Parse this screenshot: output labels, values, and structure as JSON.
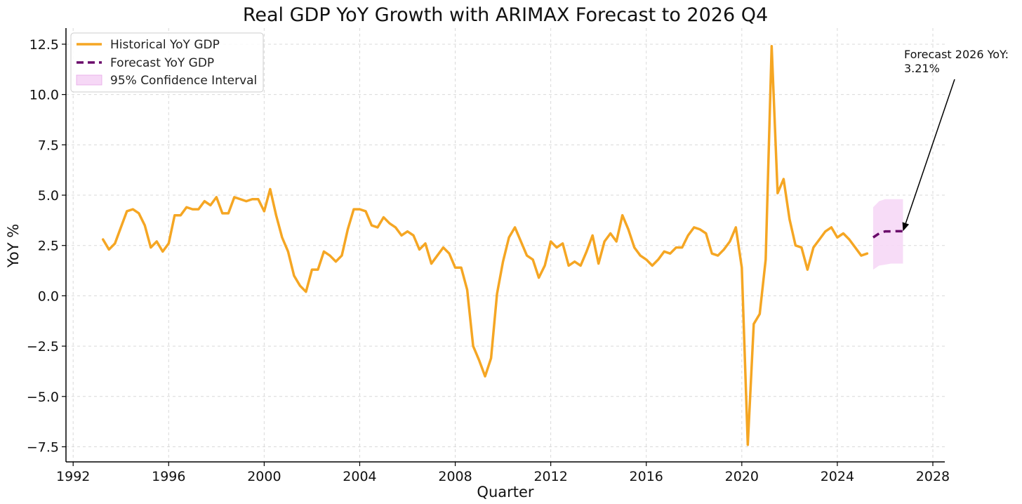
{
  "chart_data": {
    "type": "line",
    "title": "Real GDP YoY Growth with ARIMAX Forecast to 2026 Q4",
    "xlabel": "Quarter",
    "ylabel": "YoY %",
    "xlim": [
      1991.7,
      2028.5
    ],
    "ylim": [
      -8.25,
      13.3
    ],
    "x_ticks": [
      1992,
      1996,
      2000,
      2004,
      2008,
      2012,
      2016,
      2020,
      2024,
      2028
    ],
    "y_ticks": [
      -7.5,
      -5.0,
      -2.5,
      0.0,
      2.5,
      5.0,
      7.5,
      10.0,
      12.5
    ],
    "y_tick_labels": [
      "−7.5",
      "−5.0",
      "−2.5",
      "0.0",
      "2.5",
      "5.0",
      "7.5",
      "10.0",
      "12.5"
    ],
    "grid": true,
    "legend_position": "top-left",
    "series": [
      {
        "name": "Historical YoY GDP",
        "color": "#f5a623",
        "style": "solid",
        "x": [
          1993.25,
          1993.5,
          1993.75,
          1994.0,
          1994.25,
          1994.5,
          1994.75,
          1995.0,
          1995.25,
          1995.5,
          1995.75,
          1996.0,
          1996.25,
          1996.5,
          1996.75,
          1997.0,
          1997.25,
          1997.5,
          1997.75,
          1998.0,
          1998.25,
          1998.5,
          1998.75,
          1999.0,
          1999.25,
          1999.5,
          1999.75,
          2000.0,
          2000.25,
          2000.5,
          2000.75,
          2001.0,
          2001.25,
          2001.5,
          2001.75,
          2002.0,
          2002.25,
          2002.5,
          2002.75,
          2003.0,
          2003.25,
          2003.5,
          2003.75,
          2004.0,
          2004.25,
          2004.5,
          2004.75,
          2005.0,
          2005.25,
          2005.5,
          2005.75,
          2006.0,
          2006.25,
          2006.5,
          2006.75,
          2007.0,
          2007.25,
          2007.5,
          2007.75,
          2008.0,
          2008.25,
          2008.5,
          2008.75,
          2009.0,
          2009.25,
          2009.5,
          2009.75,
          2010.0,
          2010.25,
          2010.5,
          2010.75,
          2011.0,
          2011.25,
          2011.5,
          2011.75,
          2012.0,
          2012.25,
          2012.5,
          2012.75,
          2013.0,
          2013.25,
          2013.5,
          2013.75,
          2014.0,
          2014.25,
          2014.5,
          2014.75,
          2015.0,
          2015.25,
          2015.5,
          2015.75,
          2016.0,
          2016.25,
          2016.5,
          2016.75,
          2017.0,
          2017.25,
          2017.5,
          2017.75,
          2018.0,
          2018.25,
          2018.5,
          2018.75,
          2019.0,
          2019.25,
          2019.5,
          2019.75,
          2020.0,
          2020.25,
          2020.5,
          2020.75,
          2021.0,
          2021.25,
          2021.5,
          2021.75,
          2022.0,
          2022.25,
          2022.5,
          2022.75,
          2023.0,
          2023.25,
          2023.5,
          2023.75,
          2024.0,
          2024.25,
          2024.5,
          2024.75,
          2025.0,
          2025.25
        ],
        "values": [
          2.8,
          2.3,
          2.6,
          3.4,
          4.2,
          4.3,
          4.1,
          3.5,
          2.4,
          2.7,
          2.2,
          2.6,
          4.0,
          4.0,
          4.4,
          4.3,
          4.3,
          4.7,
          4.5,
          4.9,
          4.1,
          4.1,
          4.9,
          4.8,
          4.7,
          4.8,
          4.8,
          4.2,
          5.3,
          4.0,
          2.9,
          2.2,
          1.0,
          0.5,
          0.2,
          1.3,
          1.3,
          2.2,
          2.0,
          1.7,
          2.0,
          3.3,
          4.3,
          4.3,
          4.2,
          3.5,
          3.4,
          3.9,
          3.6,
          3.4,
          3.0,
          3.2,
          3.0,
          2.3,
          2.6,
          1.6,
          2.0,
          2.4,
          2.1,
          1.4,
          1.4,
          0.3,
          -2.5,
          -3.2,
          -4.0,
          -3.1,
          0.1,
          1.7,
          2.9,
          3.4,
          2.7,
          2.0,
          1.8,
          0.9,
          1.5,
          2.7,
          2.4,
          2.6,
          1.5,
          1.7,
          1.5,
          2.2,
          3.0,
          1.6,
          2.7,
          3.1,
          2.7,
          4.0,
          3.3,
          2.4,
          2.0,
          1.8,
          1.5,
          1.8,
          2.2,
          2.1,
          2.4,
          2.4,
          3.0,
          3.4,
          3.3,
          3.1,
          2.1,
          2.0,
          2.3,
          2.7,
          3.4,
          1.4,
          -7.4,
          -1.4,
          -0.9,
          1.8,
          12.4,
          5.1,
          5.8,
          3.8,
          2.5,
          2.4,
          1.3,
          2.4,
          2.8,
          3.2,
          3.4,
          2.9,
          3.1,
          2.8,
          2.4,
          2.0,
          2.1
        ]
      },
      {
        "name": "Forecast YoY GDP",
        "color": "#6a0a6a",
        "style": "dashed",
        "x": [
          2025.5,
          2025.75,
          2026.0,
          2026.25,
          2026.5,
          2026.75
        ],
        "values": [
          2.9,
          3.1,
          3.2,
          3.2,
          3.21,
          3.21
        ]
      }
    ],
    "confidence_interval": {
      "name": "95% Confidence Interval",
      "color": "#f6d8f6",
      "x": [
        2025.5,
        2025.75,
        2026.0,
        2026.25,
        2026.5,
        2026.75
      ],
      "upper": [
        4.4,
        4.7,
        4.8,
        4.8,
        4.8,
        4.8
      ],
      "lower": [
        1.3,
        1.5,
        1.55,
        1.6,
        1.6,
        1.6
      ]
    },
    "annotation": {
      "text_line1": "Forecast 2026 YoY:",
      "text_line2": "3.21%",
      "target_x": 2026.75,
      "target_y": 3.21
    }
  }
}
